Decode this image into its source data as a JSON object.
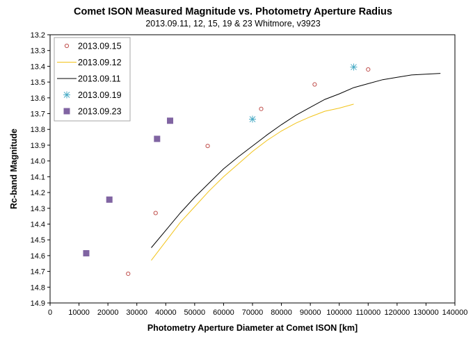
{
  "chart_data": {
    "type": "scatter",
    "title": "Comet ISON Measured Magnitude vs. Photometry Aperture Radius",
    "subtitle": "2013.09.11,  12, 15, 19 & 23 Whitmore, v3923",
    "xlabel": "Photometry Aperture Diameter at Comet ISON [km]",
    "ylabel": "Rc-band Magnitude",
    "xlim": [
      0,
      140000
    ],
    "ylim": [
      13.2,
      14.9
    ],
    "y_reversed": true,
    "grid": false,
    "legend_position": "top-left",
    "x_ticks": [
      "0",
      "10000",
      "20000",
      "30000",
      "40000",
      "50000",
      "60000",
      "70000",
      "80000",
      "90000",
      "100000",
      "110000",
      "120000",
      "130000",
      "140000"
    ],
    "y_ticks": [
      "13.2",
      "13.3",
      "13.4",
      "13.5",
      "13.6",
      "13.7",
      "13.8",
      "13.9",
      "14.0",
      "14.1",
      "14.2",
      "14.3",
      "14.4",
      "14.5",
      "14.6",
      "14.7",
      "14.8",
      "14.9"
    ],
    "series": [
      {
        "name": "2013.09.15",
        "style": "open-circle",
        "color": "#c0504d",
        "x": [
          27000,
          36500,
          54500,
          73000,
          91500,
          110000
        ],
        "y": [
          14.715,
          14.33,
          13.905,
          13.67,
          13.515,
          13.42
        ]
      },
      {
        "name": "2013.09.12",
        "style": "line",
        "color": "#f2c318",
        "x": [
          35000,
          40000,
          45000,
          50000,
          55000,
          60000,
          65000,
          70000,
          75000,
          80000,
          85000,
          90000,
          95000,
          100000,
          105000
        ],
        "y": [
          14.63,
          14.51,
          14.39,
          14.29,
          14.19,
          14.1,
          14.02,
          13.94,
          13.87,
          13.81,
          13.76,
          13.72,
          13.685,
          13.665,
          13.64
        ]
      },
      {
        "name": "2013.09.11",
        "style": "line",
        "color": "#000000",
        "x": [
          35000,
          40000,
          45000,
          50000,
          55000,
          60000,
          65000,
          70000,
          75000,
          80000,
          85000,
          90000,
          95000,
          100000,
          105000,
          110000,
          115000,
          120000,
          125000,
          130000,
          135000
        ],
        "y": [
          14.55,
          14.44,
          14.33,
          14.23,
          14.14,
          14.05,
          13.975,
          13.905,
          13.835,
          13.77,
          13.71,
          13.66,
          13.61,
          13.575,
          13.535,
          13.51,
          13.485,
          13.47,
          13.455,
          13.45,
          13.445
        ]
      },
      {
        "name": "2013.09.19",
        "style": "asterisk",
        "color": "#4bacc6",
        "x": [
          70000,
          105000
        ],
        "y": [
          13.735,
          13.405
        ]
      },
      {
        "name": "2013.09.23",
        "style": "filled-square",
        "color": "#8064a2",
        "x": [
          12500,
          20500,
          37000,
          41500
        ],
        "y": [
          14.585,
          14.245,
          13.86,
          13.745
        ]
      }
    ]
  }
}
